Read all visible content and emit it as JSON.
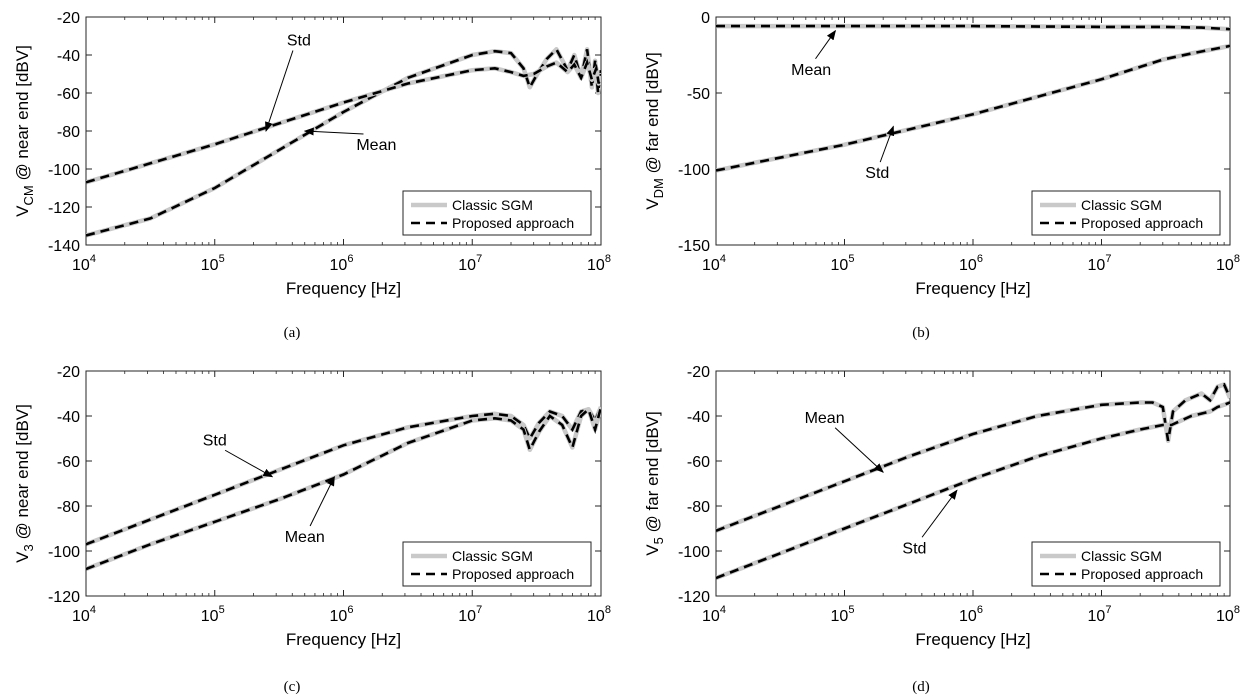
{
  "chart_data": [
    {
      "type": "line",
      "caption": "(a)",
      "xlabel": "Frequency [Hz]",
      "ylabel": {
        "main": "V",
        "sub": "CM",
        "rest": " @ near end [dBV]"
      },
      "xscale": "log",
      "xlim": [
        10000,
        100000000
      ],
      "ylim": [
        -140,
        -20
      ],
      "xticks": [
        {
          "v": 10000,
          "base": "10",
          "exp": "4"
        },
        {
          "v": 100000,
          "base": "10",
          "exp": "5"
        },
        {
          "v": 1000000,
          "base": "10",
          "exp": "6"
        },
        {
          "v": 10000000,
          "base": "10",
          "exp": "7"
        },
        {
          "v": 100000000,
          "base": "10",
          "exp": "8"
        }
      ],
      "yticks": [
        -20,
        -40,
        -60,
        -80,
        -100,
        -120,
        -140
      ],
      "legend": {
        "placement": "bottom-right",
        "entries": [
          "Classic SGM",
          "Proposed approach"
        ]
      },
      "series": [
        {
          "label": "Mean",
          "x": [
            10000,
            31623,
            100000,
            316228,
            1000000,
            3162278,
            10000000,
            15000000,
            20000000,
            25000000,
            28000000,
            32000000,
            38000000,
            45000000,
            55000000,
            62000000,
            70000000,
            78000000,
            85000000,
            90000000,
            95000000,
            100000000
          ],
          "y": [
            -135,
            -126,
            -110,
            -90,
            -70,
            -52,
            -40,
            -38,
            -39,
            -47,
            -57,
            -50,
            -42,
            -37,
            -48,
            -40,
            -52,
            -37,
            -57,
            -43,
            -60,
            -48
          ]
        },
        {
          "label": "Std",
          "x": [
            10000,
            31623,
            100000,
            316228,
            1000000,
            3162278,
            10000000,
            15000000,
            20000000,
            25000000,
            30000000,
            38000000,
            45000000,
            55000000,
            62000000,
            70000000,
            78000000,
            85000000,
            92000000,
            96000000,
            100000000
          ],
          "y": [
            -107,
            -97,
            -87,
            -76,
            -65,
            -55,
            -48,
            -47,
            -49,
            -51,
            -50,
            -46,
            -44,
            -49,
            -45,
            -52,
            -44,
            -53,
            -47,
            -55,
            -50
          ]
        }
      ],
      "annotations": [
        {
          "text": "Std",
          "x": 450000,
          "y": -35,
          "ax": 250000,
          "ay": -80
        },
        {
          "text": "Mean",
          "x": 1800000,
          "y": -90,
          "ax": 500000,
          "ay": -80
        }
      ]
    },
    {
      "type": "line",
      "caption": "(b)",
      "xlabel": "Frequency [Hz]",
      "ylabel": {
        "main": "V",
        "sub": "DM",
        "rest": " @ far end [dBV]"
      },
      "xscale": "log",
      "xlim": [
        10000,
        100000000
      ],
      "ylim": [
        -150,
        0
      ],
      "xticks": [
        {
          "v": 10000,
          "base": "10",
          "exp": "4"
        },
        {
          "v": 100000,
          "base": "10",
          "exp": "5"
        },
        {
          "v": 1000000,
          "base": "10",
          "exp": "6"
        },
        {
          "v": 10000000,
          "base": "10",
          "exp": "7"
        },
        {
          "v": 100000000,
          "base": "10",
          "exp": "8"
        }
      ],
      "yticks": [
        0,
        -50,
        -100,
        -150
      ],
      "legend": {
        "placement": "bottom-right",
        "entries": [
          "Classic SGM",
          "Proposed approach"
        ]
      },
      "series": [
        {
          "label": "Mean",
          "x": [
            10000,
            100000,
            1000000,
            10000000,
            30000000,
            60000000,
            100000000
          ],
          "y": [
            -6,
            -6,
            -6,
            -6.5,
            -6.5,
            -7,
            -8
          ]
        },
        {
          "label": "Std",
          "x": [
            10000,
            100000,
            1000000,
            10000000,
            30000000,
            50000000,
            100000000
          ],
          "y": [
            -101,
            -84,
            -64,
            -41,
            -28,
            -24,
            -19
          ]
        }
      ],
      "annotations": [
        {
          "text": "Mean",
          "x": 55000,
          "y": -38,
          "ax": 85000,
          "ay": -9
        },
        {
          "text": "Std",
          "x": 180000,
          "y": -106,
          "ax": 240000,
          "ay": -72
        }
      ]
    },
    {
      "type": "line",
      "caption": "(c)",
      "xlabel": "Frequency [Hz]",
      "ylabel": {
        "main": "V",
        "sub": "3",
        "rest": " @ near end [dBV]"
      },
      "xscale": "log",
      "xlim": [
        10000,
        100000000
      ],
      "ylim": [
        -120,
        -20
      ],
      "xticks": [
        {
          "v": 10000,
          "base": "10",
          "exp": "4"
        },
        {
          "v": 100000,
          "base": "10",
          "exp": "5"
        },
        {
          "v": 1000000,
          "base": "10",
          "exp": "6"
        },
        {
          "v": 10000000,
          "base": "10",
          "exp": "7"
        },
        {
          "v": 100000000,
          "base": "10",
          "exp": "8"
        }
      ],
      "yticks": [
        -20,
        -40,
        -60,
        -80,
        -100,
        -120
      ],
      "legend": {
        "placement": "bottom-right",
        "entries": [
          "Classic SGM",
          "Proposed approach"
        ]
      },
      "series": [
        {
          "label": "Std",
          "x": [
            10000,
            31623,
            100000,
            316228,
            1000000,
            3162278,
            10000000,
            15000000,
            20000000,
            25000000,
            28000000,
            33000000,
            40000000,
            50000000,
            60000000,
            70000000,
            80000000,
            90000000,
            100000000
          ],
          "y": [
            -97,
            -86,
            -75,
            -64,
            -53,
            -45,
            -40,
            -39,
            -40,
            -44,
            -50,
            -43,
            -38,
            -40,
            -46,
            -38,
            -37,
            -42,
            -36
          ]
        },
        {
          "label": "Mean",
          "x": [
            10000,
            31623,
            100000,
            316228,
            1000000,
            3162278,
            10000000,
            15000000,
            20000000,
            25000000,
            28000000,
            33000000,
            40000000,
            50000000,
            60000000,
            70000000,
            80000000,
            90000000,
            100000000
          ],
          "y": [
            -108,
            -97,
            -87,
            -77,
            -66,
            -52,
            -42,
            -41,
            -42,
            -46,
            -55,
            -47,
            -40,
            -44,
            -54,
            -40,
            -37,
            -46,
            -36
          ]
        }
      ],
      "annotations": [
        {
          "text": "Std",
          "x": 100000,
          "y": -53,
          "ax": 280000,
          "ay": -67
        },
        {
          "text": "Mean",
          "x": 500000,
          "y": -96,
          "ax": 850000,
          "ay": -67
        }
      ]
    },
    {
      "type": "line",
      "caption": "(d)",
      "xlabel": "Frequency [Hz]",
      "ylabel": {
        "main": "V",
        "sub": "5",
        "rest": " @ far end [dBV]"
      },
      "xscale": "log",
      "xlim": [
        10000,
        100000000
      ],
      "ylim": [
        -120,
        -20
      ],
      "xticks": [
        {
          "v": 10000,
          "base": "10",
          "exp": "4"
        },
        {
          "v": 100000,
          "base": "10",
          "exp": "5"
        },
        {
          "v": 1000000,
          "base": "10",
          "exp": "6"
        },
        {
          "v": 10000000,
          "base": "10",
          "exp": "7"
        },
        {
          "v": 100000000,
          "base": "10",
          "exp": "8"
        }
      ],
      "yticks": [
        -20,
        -40,
        -60,
        -80,
        -100,
        -120
      ],
      "legend": {
        "placement": "bottom-right",
        "entries": [
          "Classic SGM",
          "Proposed approach"
        ]
      },
      "series": [
        {
          "label": "Mean",
          "x": [
            10000,
            31623,
            100000,
            316228,
            1000000,
            3162278,
            10000000,
            20000000,
            25000000,
            30000000,
            33000000,
            36000000,
            45000000,
            60000000,
            70000000,
            80000000,
            90000000,
            100000000
          ],
          "y": [
            -91,
            -80,
            -69,
            -58,
            -48,
            -40,
            -35,
            -34,
            -34,
            -36,
            -51,
            -38,
            -33,
            -30,
            -33,
            -27,
            -26,
            -32
          ]
        },
        {
          "label": "Std",
          "x": [
            10000,
            31623,
            100000,
            316228,
            1000000,
            3162278,
            10000000,
            20000000,
            30000000,
            35000000,
            50000000,
            70000000,
            80000000,
            90000000,
            100000000
          ],
          "y": [
            -112,
            -101,
            -90,
            -79,
            -68,
            -58,
            -50,
            -46,
            -44,
            -44,
            -40,
            -38,
            -36,
            -35,
            -34
          ]
        }
      ],
      "annotations": [
        {
          "text": "Mean",
          "x": 70000,
          "y": -43,
          "ax": 200000,
          "ay": -65
        },
        {
          "text": "Std",
          "x": 350000,
          "y": -101,
          "ax": 750000,
          "ay": -73
        }
      ]
    }
  ],
  "style": {
    "classic_color": "#c9c9c9",
    "proposed_color": "#000000"
  }
}
